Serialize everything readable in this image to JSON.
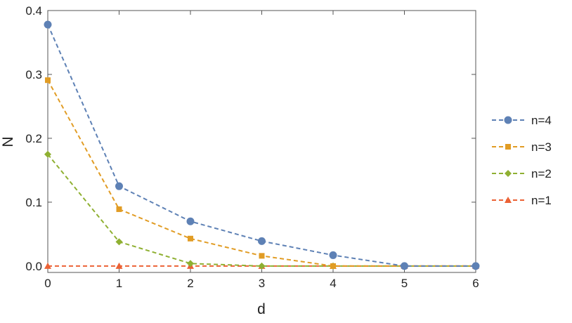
{
  "chart_data": {
    "type": "line",
    "title": "",
    "xlabel": "d",
    "ylabel": "N",
    "xlim": [
      0,
      6
    ],
    "ylim": [
      -0.01,
      0.4
    ],
    "x_ticks": [
      0,
      1,
      2,
      3,
      4,
      5,
      6
    ],
    "x_tick_labels": [
      "0",
      "1",
      "2",
      "3",
      "4",
      "5",
      "6"
    ],
    "y_ticks": [
      0.0,
      0.1,
      0.2,
      0.3,
      0.4
    ],
    "y_tick_labels": [
      "0.0",
      "0.1",
      "0.2",
      "0.3",
      "0.4"
    ],
    "grid": false,
    "legend_position": "right",
    "x": [
      0,
      1,
      2,
      3,
      4,
      5,
      6
    ],
    "series": [
      {
        "name": "n=4",
        "color": "#5e81b5",
        "marker": "circle",
        "values": [
          0.378,
          0.125,
          0.07,
          0.039,
          0.017,
          0.0,
          0.0
        ]
      },
      {
        "name": "n=3",
        "color": "#e19c24",
        "marker": "square",
        "values": [
          0.291,
          0.089,
          0.043,
          0.016,
          0.0,
          0.0,
          0.0
        ]
      },
      {
        "name": "n=2",
        "color": "#8fb032",
        "marker": "diamond",
        "values": [
          0.175,
          0.038,
          0.004,
          0.0,
          0.0,
          0.0,
          0.0
        ]
      },
      {
        "name": "n=1",
        "color": "#eb6235",
        "marker": "triangle",
        "values": [
          0.0,
          0.0,
          0.0,
          0.0,
          0.0,
          0.0,
          0.0
        ]
      }
    ]
  }
}
